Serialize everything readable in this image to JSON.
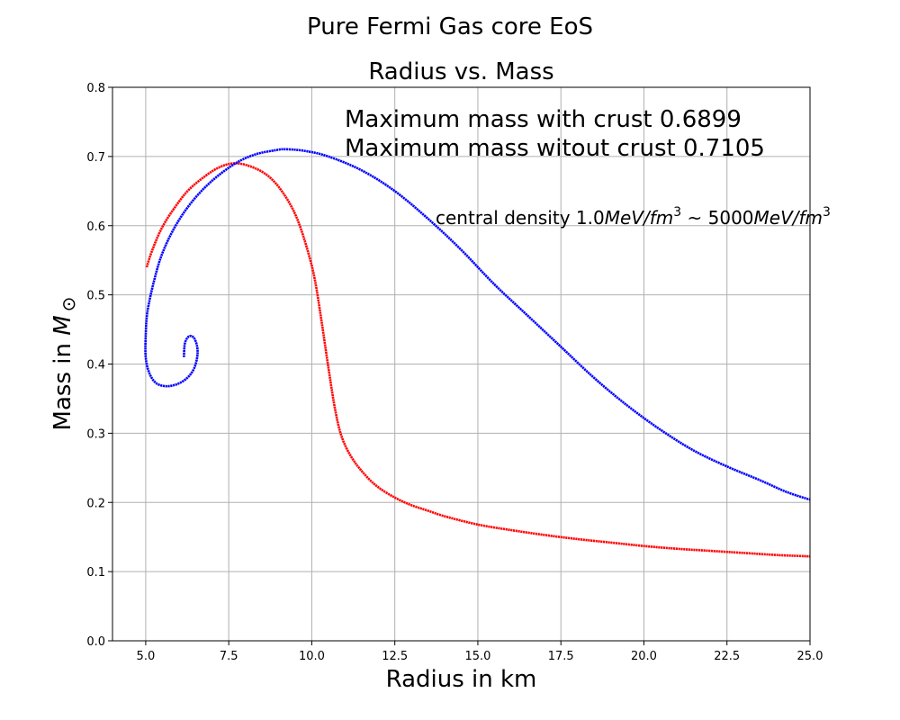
{
  "chart_data": {
    "type": "scatter",
    "suptitle": "Pure Fermi Gas core EoS",
    "title": "Radius vs. Mass",
    "xlabel": "Radius in km",
    "ylabel_text": "Mass in ",
    "ylabel_symbol": "M",
    "ylabel_sub": "⊙",
    "xlim": [
      4.0,
      25.0
    ],
    "ylim": [
      0.0,
      0.8
    ],
    "grid": true,
    "xticks": [
      "5.0",
      "7.5",
      "10.0",
      "12.5",
      "15.0",
      "17.5",
      "20.0",
      "22.5",
      "25.0"
    ],
    "yticks": [
      "0.0",
      "0.1",
      "0.2",
      "0.3",
      "0.4",
      "0.5",
      "0.6",
      "0.7",
      "0.8"
    ],
    "annotations": {
      "max_with_crust": "Maximum mass with crust 0.6899",
      "max_without_crust": "Maximum mass witout crust 0.7105",
      "density_prefix": "central density 1.0",
      "density_unit1": "MeV/fm",
      "density_mid": " ~ 5000",
      "density_unit2": "MeV/fm",
      "density_exp": "3"
    },
    "series": [
      {
        "color": "#ff0000",
        "points": [
          [
            5.03,
            0.54
          ],
          [
            5.2,
            0.565
          ],
          [
            5.5,
            0.598
          ],
          [
            5.9,
            0.628
          ],
          [
            6.3,
            0.652
          ],
          [
            6.8,
            0.672
          ],
          [
            7.2,
            0.684
          ],
          [
            7.6,
            0.6899
          ],
          [
            8.0,
            0.688
          ],
          [
            8.5,
            0.678
          ],
          [
            8.9,
            0.662
          ],
          [
            9.3,
            0.635
          ],
          [
            9.6,
            0.605
          ],
          [
            9.9,
            0.56
          ],
          [
            10.1,
            0.52
          ],
          [
            10.3,
            0.46
          ],
          [
            10.5,
            0.395
          ],
          [
            10.7,
            0.335
          ],
          [
            10.9,
            0.295
          ],
          [
            11.2,
            0.265
          ],
          [
            11.6,
            0.24
          ],
          [
            12.0,
            0.222
          ],
          [
            12.5,
            0.207
          ],
          [
            13.0,
            0.196
          ],
          [
            13.5,
            0.188
          ],
          [
            14.0,
            0.18
          ],
          [
            15.0,
            0.168
          ],
          [
            16.0,
            0.16
          ],
          [
            17.0,
            0.153
          ],
          [
            18.0,
            0.147
          ],
          [
            19.0,
            0.142
          ],
          [
            20.0,
            0.137
          ],
          [
            21.0,
            0.133
          ],
          [
            22.0,
            0.13
          ],
          [
            23.0,
            0.127
          ],
          [
            24.0,
            0.124
          ],
          [
            25.0,
            0.122
          ]
        ]
      },
      {
        "color": "#0000ff",
        "points": [
          [
            6.15,
            0.41
          ],
          [
            6.18,
            0.43
          ],
          [
            6.3,
            0.44
          ],
          [
            6.45,
            0.438
          ],
          [
            6.55,
            0.425
          ],
          [
            6.55,
            0.41
          ],
          [
            6.45,
            0.393
          ],
          [
            6.25,
            0.38
          ],
          [
            5.95,
            0.371
          ],
          [
            5.6,
            0.368
          ],
          [
            5.3,
            0.373
          ],
          [
            5.1,
            0.388
          ],
          [
            5.0,
            0.41
          ],
          [
            5.0,
            0.44
          ],
          [
            5.05,
            0.475
          ],
          [
            5.25,
            0.52
          ],
          [
            5.5,
            0.56
          ],
          [
            5.9,
            0.6
          ],
          [
            6.4,
            0.635
          ],
          [
            7.0,
            0.665
          ],
          [
            7.7,
            0.69
          ],
          [
            8.3,
            0.703
          ],
          [
            8.9,
            0.709
          ],
          [
            9.2,
            0.7105
          ],
          [
            9.8,
            0.708
          ],
          [
            10.5,
            0.7
          ],
          [
            11.5,
            0.68
          ],
          [
            12.5,
            0.65
          ],
          [
            13.5,
            0.61
          ],
          [
            14.5,
            0.565
          ],
          [
            15.5,
            0.515
          ],
          [
            16.5,
            0.47
          ],
          [
            17.5,
            0.425
          ],
          [
            18.5,
            0.38
          ],
          [
            19.5,
            0.34
          ],
          [
            20.5,
            0.305
          ],
          [
            21.5,
            0.275
          ],
          [
            22.5,
            0.252
          ],
          [
            23.5,
            0.232
          ],
          [
            24.3,
            0.215
          ],
          [
            25.0,
            0.204
          ]
        ]
      }
    ]
  }
}
